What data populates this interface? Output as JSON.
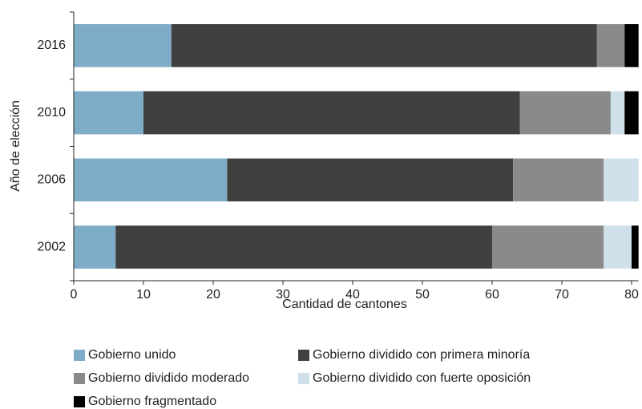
{
  "chart_data": {
    "type": "stacked-barh",
    "xlabel": "Cantidad de cantones",
    "ylabel": "Año de elección",
    "categories": [
      "2016",
      "2010",
      "2006",
      "2002"
    ],
    "series": [
      {
        "name": "Gobierno unido",
        "color": "#7fadc8",
        "values": [
          14,
          10,
          22,
          6
        ]
      },
      {
        "name": "Gobierno dividido con primera minoría",
        "color": "#404040",
        "values": [
          61,
          54,
          41,
          54
        ]
      },
      {
        "name": "Gobierno dividido moderado",
        "color": "#8a8a8a",
        "values": [
          4,
          13,
          13,
          16
        ]
      },
      {
        "name": "Gobierno dividido con fuerte oposición",
        "color": "#cfe0ea",
        "values": [
          0,
          2,
          5,
          4
        ]
      },
      {
        "name": "Gobierno fragmentado",
        "color": "#000000",
        "values": [
          2,
          2,
          0,
          1
        ]
      }
    ],
    "xlim": [
      0,
      81
    ],
    "xticks": [
      0,
      10,
      20,
      30,
      40,
      50,
      60,
      70,
      80
    ]
  }
}
